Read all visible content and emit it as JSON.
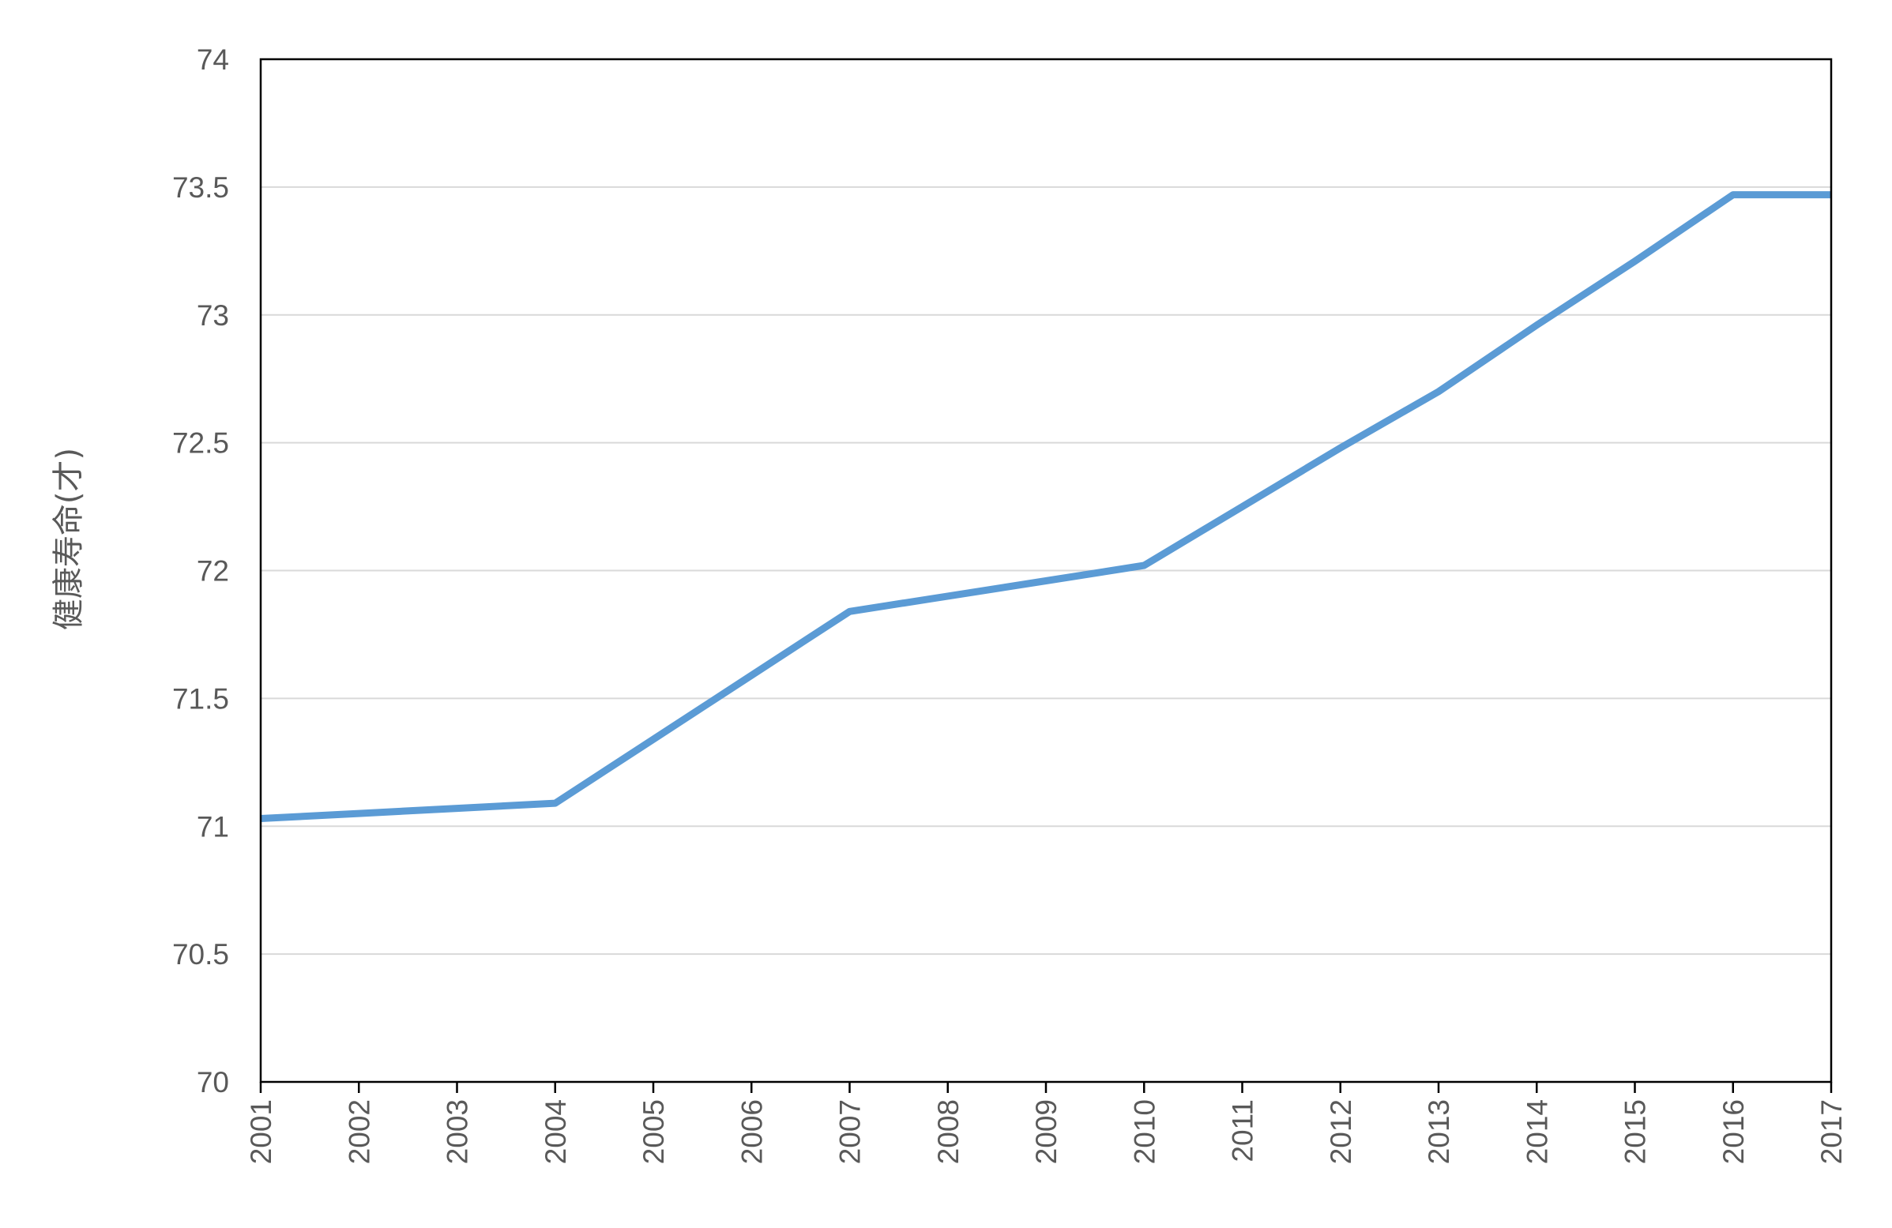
{
  "chart_data": {
    "type": "line",
    "title": "",
    "xlabel": "",
    "ylabel": "健康寿命(才)",
    "ylim": [
      70,
      74
    ],
    "y_ticks": [
      "70",
      "70.5",
      "71",
      "71.5",
      "72",
      "72.5",
      "73",
      "73.5",
      "74"
    ],
    "x": [
      "2001",
      "2002",
      "2003",
      "2004",
      "2005",
      "2006",
      "2007",
      "2008",
      "2009",
      "2010",
      "2011",
      "2012",
      "2013",
      "2014",
      "2015",
      "2016",
      "2017"
    ],
    "series": [
      {
        "values": [
          71.03,
          71.05,
          71.07,
          71.09,
          71.34,
          71.59,
          71.84,
          71.9,
          71.96,
          72.02,
          72.25,
          72.48,
          72.7,
          72.96,
          73.21,
          73.47,
          73.47
        ]
      }
    ],
    "grid": true,
    "legend": "none",
    "colors": {
      "line": "#5b9bd5",
      "grid": "#d9d9d9",
      "axis": "#000000",
      "text": "#595959"
    }
  }
}
